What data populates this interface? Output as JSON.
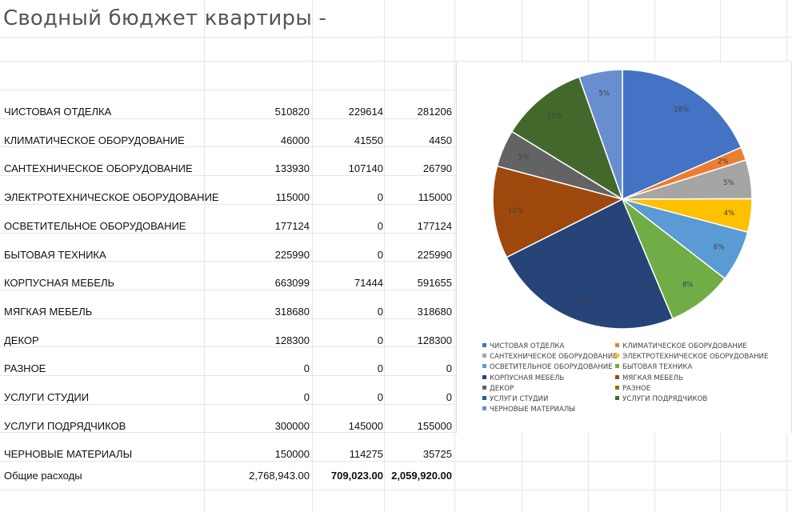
{
  "title": "Сводный бюджет квартиры -",
  "rows": [
    {
      "name": "ЧИСТОВАЯ ОТДЕЛКА",
      "total": "510820",
      "paid": "229614",
      "remaining": "281206"
    },
    {
      "name": "КЛИМАТИЧЕСКОЕ ОБОРУДОВАНИЕ",
      "total": "46000",
      "paid": "41550",
      "remaining": "4450"
    },
    {
      "name": "САНТЕХНИЧЕСКОЕ ОБОРУДОВАНИЕ",
      "total": "133930",
      "paid": "107140",
      "remaining": "26790"
    },
    {
      "name": "ЭЛЕКТРОТЕХНИЧЕСКОЕ ОБОРУДОВАНИЕ",
      "total": "115000",
      "paid": "0",
      "remaining": "115000"
    },
    {
      "name": "ОСВЕТИТЕЛЬНОЕ ОБОРУДОВАНИЕ",
      "total": "177124",
      "paid": "0",
      "remaining": "177124"
    },
    {
      "name": "БЫТОВАЯ ТЕХНИКА",
      "total": "225990",
      "paid": "0",
      "remaining": "225990"
    },
    {
      "name": "КОРПУСНАЯ МЕБЕЛЬ",
      "total": "663099",
      "paid": "71444",
      "remaining": "591655"
    },
    {
      "name": "МЯГКАЯ МЕБЕЛЬ",
      "total": "318680",
      "paid": "0",
      "remaining": "318680"
    },
    {
      "name": "ДЕКОР",
      "total": "128300",
      "paid": "0",
      "remaining": "128300"
    },
    {
      "name": "РАЗНОЕ",
      "total": "0",
      "paid": "0",
      "remaining": "0"
    },
    {
      "name": "УСЛУГИ СТУДИИ",
      "total": "0",
      "paid": "0",
      "remaining": "0"
    },
    {
      "name": "УСЛУГИ ПОДРЯДЧИКОВ",
      "total": "300000",
      "paid": "145000",
      "remaining": "155000"
    },
    {
      "name": "ЧЕРНОВЫЕ МАТЕРИАЛЫ",
      "total": "150000",
      "paid": "114275",
      "remaining": "35725"
    }
  ],
  "totals": {
    "label": "Общие расходы",
    "total": "2,768,943.00",
    "paid": "709,023.00",
    "remaining": "2,059,920.00"
  },
  "chart_data": {
    "type": "pie",
    "title": "",
    "categories": [
      "ЧИСТОВАЯ ОТДЕЛКА",
      "КЛИМАТИЧЕСКОЕ ОБОРУДОВАНИЕ",
      "САНТЕХНИЧЕСКОЕ ОБОРУДОВАНИЕ",
      "ЭЛЕКТРОТЕХНИЧЕСКОЕ ОБОРУДОВАНИЕ",
      "ОСВЕТИТЕЛЬНОЕ ОБОРУДОВАНИЕ",
      "БЫТОВАЯ ТЕХНИКА",
      "КОРПУСНАЯ МЕБЕЛЬ",
      "МЯГКАЯ МЕБЕЛЬ",
      "ДЕКОР",
      "РАЗНОЕ",
      "УСЛУГИ СТУДИИ",
      "УСЛУГИ ПОДРЯДЧИКОВ",
      "ЧЕРНОВЫЕ МАТЕРИАЛЫ"
    ],
    "values": [
      510820,
      46000,
      133930,
      115000,
      177124,
      225990,
      663099,
      318680,
      128300,
      0,
      0,
      300000,
      150000
    ],
    "data_labels": [
      "18%",
      "2%",
      "5%",
      "4%",
      "6%",
      "8%",
      "24%",
      "12%",
      "5%",
      "",
      "",
      "11%",
      "5%"
    ],
    "colors": [
      "#4472c4",
      "#ed7d31",
      "#a5a5a5",
      "#ffc000",
      "#5b9bd5",
      "#70ad47",
      "#264478",
      "#9e480e",
      "#636363",
      "#997300",
      "#255e91",
      "#43682b",
      "#698ed0"
    ],
    "legend_position": "bottom"
  }
}
